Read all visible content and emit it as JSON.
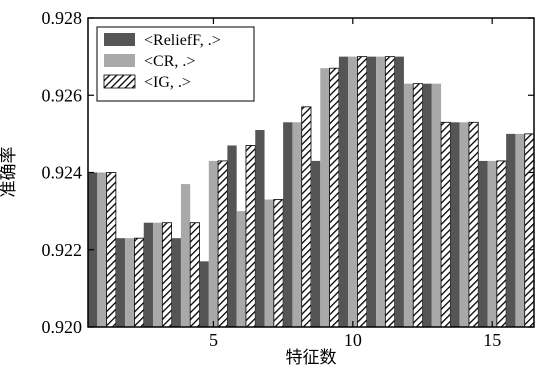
{
  "chart_data": {
    "type": "bar",
    "xlabel": "特征数",
    "ylabel": "准确率",
    "xlim": [
      0.5,
      16.5
    ],
    "ylim": [
      0.92,
      0.928
    ],
    "x": [
      1,
      2,
      3,
      4,
      5,
      6,
      7,
      8,
      9,
      10,
      11,
      12,
      13,
      14,
      15,
      16
    ],
    "xticks": [
      5,
      10,
      15
    ],
    "yticks": [
      0.92,
      0.922,
      0.924,
      0.926,
      0.928
    ],
    "ytick_labels": [
      "0.920",
      "0.922",
      "0.924",
      "0.926",
      "0.928"
    ],
    "grid": false,
    "legend_position": "top-left",
    "series": [
      {
        "name": "<ReliefF, .>",
        "color": "#555555",
        "pattern": "solid",
        "values": [
          0.924,
          0.9223,
          0.9227,
          0.9223,
          0.9217,
          0.9247,
          0.9251,
          0.9253,
          0.9243,
          0.927,
          0.927,
          0.927,
          0.9263,
          0.9253,
          0.9243,
          0.925
        ]
      },
      {
        "name": "<CR, .>",
        "color": "#a9a9a9",
        "pattern": "solid",
        "values": [
          0.924,
          0.9223,
          0.9227,
          0.9237,
          0.9243,
          0.923,
          0.9233,
          0.9253,
          0.9267,
          0.927,
          0.927,
          0.9263,
          0.9263,
          0.9253,
          0.9243,
          0.925
        ]
      },
      {
        "name": "<IG, .>",
        "color": "#ffffff",
        "pattern": "hatch",
        "values": [
          0.924,
          0.9223,
          0.9227,
          0.9227,
          0.9243,
          0.9247,
          0.9233,
          0.9257,
          0.9267,
          0.927,
          0.927,
          0.9263,
          0.9253,
          0.9253,
          0.9243,
          0.925
        ]
      }
    ]
  }
}
